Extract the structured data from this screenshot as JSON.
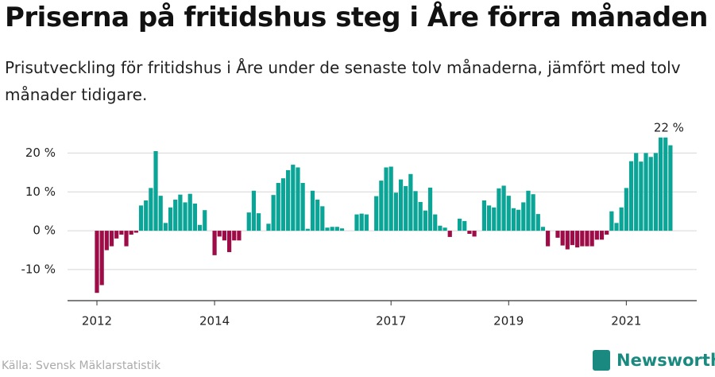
{
  "chart_data": {
    "type": "bar",
    "title": "Priserna på fritidshus steg i Åre förra månaden",
    "subtitle": "Prisutveckling för fritidshus i Åre under de senaste tolv månaderna, jämfört med tolv månader tidigare.",
    "source": "Källa: Svensk Mäklarstatistik",
    "brand": "Newsworthy",
    "annotation": "22 %",
    "positive_color": "#0aa596",
    "negative_color": "#9e0c47",
    "grid": true,
    "ylim": [
      -18,
      25
    ],
    "yticks": [
      {
        "value": -10,
        "label": "-10 %"
      },
      {
        "value": 0,
        "label": "0 %"
      },
      {
        "value": 10,
        "label": "10 %"
      },
      {
        "value": 20,
        "label": "20 %"
      }
    ],
    "categories": [
      "2012",
      null,
      null,
      null,
      null,
      null,
      null,
      null,
      null,
      null,
      null,
      null,
      null,
      null,
      null,
      null,
      null,
      null,
      null,
      null,
      null,
      null,
      null,
      null,
      "2014",
      null,
      null,
      null,
      null,
      null,
      null,
      null,
      null,
      null,
      null,
      null,
      null,
      null,
      null,
      null,
      null,
      null,
      null,
      null,
      null,
      null,
      null,
      null,
      null,
      null,
      null,
      null,
      null,
      null,
      null,
      null,
      null,
      null,
      null,
      null,
      "2017",
      null,
      null,
      null,
      null,
      null,
      null,
      null,
      null,
      null,
      null,
      null,
      null,
      null,
      null,
      null,
      null,
      null,
      null,
      null,
      null,
      null,
      null,
      null,
      "2019",
      null,
      null,
      null,
      null,
      null,
      null,
      null,
      null,
      null,
      null,
      null,
      null,
      null,
      null,
      null,
      null,
      null,
      null,
      null,
      null,
      null,
      null,
      null,
      "2021",
      null,
      null,
      null,
      null,
      null,
      null,
      null,
      null,
      null
    ],
    "values": [
      -16,
      -14,
      -5,
      -4,
      -2,
      -1,
      -4,
      -1,
      -0.5,
      6.5,
      7.8,
      11,
      20.5,
      9,
      2,
      6,
      8,
      9.3,
      7.3,
      9.5,
      7,
      1.5,
      5.3,
      0,
      -6.3,
      -1.5,
      -2.5,
      -5.5,
      -2.5,
      -2.5,
      0,
      4.7,
      10.3,
      4.5,
      0,
      1.8,
      9.2,
      12.3,
      13.5,
      15.6,
      17,
      16.3,
      12.3,
      0.5,
      10.3,
      8,
      6.3,
      0.8,
      1,
      1,
      0.6,
      0,
      0,
      4.2,
      4.4,
      4.2,
      0,
      8.9,
      12.9,
      16.3,
      16.5,
      9.8,
      13.2,
      11.5,
      14.6,
      10.2,
      7.4,
      5.2,
      11.1,
      4.2,
      1.3,
      0.8,
      -1.6,
      0,
      3.1,
      2.5,
      -0.8,
      -1.5,
      0,
      7.8,
      6.5,
      6,
      10.9,
      11.6,
      9,
      5.8,
      5.4,
      7.3,
      10.3,
      9.4,
      4.3,
      1,
      -4,
      0,
      -1.8,
      -3.8,
      -4.8,
      -3.7,
      -4.3,
      -4,
      -4,
      -4,
      -2.3,
      -2.3,
      -1,
      5,
      2,
      6,
      11,
      17.9,
      20,
      17.8,
      20,
      19,
      20,
      24,
      24,
      22
    ]
  }
}
